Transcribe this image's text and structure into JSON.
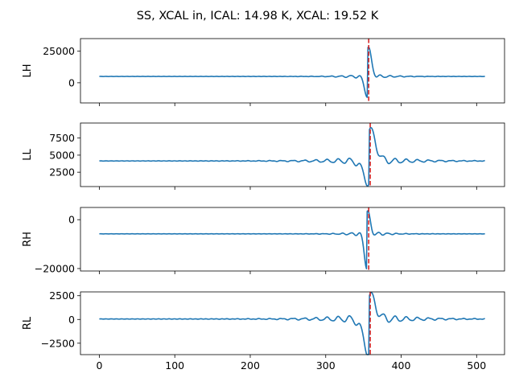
{
  "figure": {
    "title": "SS, XCAL in, ICAL: 14.98 K, XCAL: 19.52 K"
  },
  "colors": {
    "series": "#1f77b4",
    "marker": "#d62728"
  },
  "chart_data": [
    {
      "type": "line",
      "ylabel": "LH",
      "xlim": [
        -25,
        537
      ],
      "ylim": [
        -16000,
        35000
      ],
      "yticks": [
        0,
        25000
      ],
      "ytick_labels": [
        "0",
        "25000"
      ],
      "xticks": [
        0,
        100,
        200,
        300,
        400,
        500
      ],
      "xtick_labels": [],
      "baseline": 5000,
      "marker_x": 357,
      "interferogram": {
        "center": 356,
        "peak": 28000,
        "trough": -11000,
        "envelope_decay": 12,
        "period": 13,
        "side_amplitude": 2000
      }
    },
    {
      "type": "line",
      "ylabel": "LL",
      "xlim": [
        -25,
        537
      ],
      "ylim": [
        400,
        9700
      ],
      "yticks": [
        2500,
        5000,
        7500
      ],
      "ytick_labels": [
        "2500",
        "5000",
        "7500"
      ],
      "xticks": [
        0,
        100,
        200,
        300,
        400,
        500
      ],
      "xtick_labels": [],
      "baseline": 4150,
      "marker_x": 359,
      "interferogram": {
        "center": 358,
        "peak": 8700,
        "trough": 900,
        "envelope_decay": 22,
        "period": 15,
        "side_amplitude": 700
      }
    },
    {
      "type": "line",
      "ylabel": "RH",
      "xlim": [
        -25,
        537
      ],
      "ylim": [
        -21000,
        5000
      ],
      "yticks": [
        -20000,
        0
      ],
      "ytick_labels": [
        "−20000",
        "0"
      ],
      "xticks": [
        0,
        100,
        200,
        300,
        400,
        500
      ],
      "xtick_labels": [],
      "baseline": -5800,
      "marker_x": 357,
      "interferogram": {
        "center": 355,
        "peak": 3500,
        "trough": -20000,
        "envelope_decay": 10,
        "period": 12,
        "side_amplitude": 1200
      }
    },
    {
      "type": "line",
      "ylabel": "RL",
      "xlim": [
        -25,
        537
      ],
      "ylim": [
        -3700,
        2900
      ],
      "yticks": [
        -2500,
        0,
        2500
      ],
      "ytick_labels": [
        "−2500",
        "0",
        "2500"
      ],
      "xticks": [
        0,
        100,
        200,
        300,
        400,
        500
      ],
      "xtick_labels": [
        "0",
        "100",
        "200",
        "300",
        "400",
        "500"
      ],
      "baseline": 50,
      "marker_x": 359,
      "interferogram": {
        "center": 358,
        "peak": 2500,
        "trough": -3500,
        "envelope_decay": 22,
        "period": 15,
        "side_amplitude": 600
      }
    }
  ]
}
